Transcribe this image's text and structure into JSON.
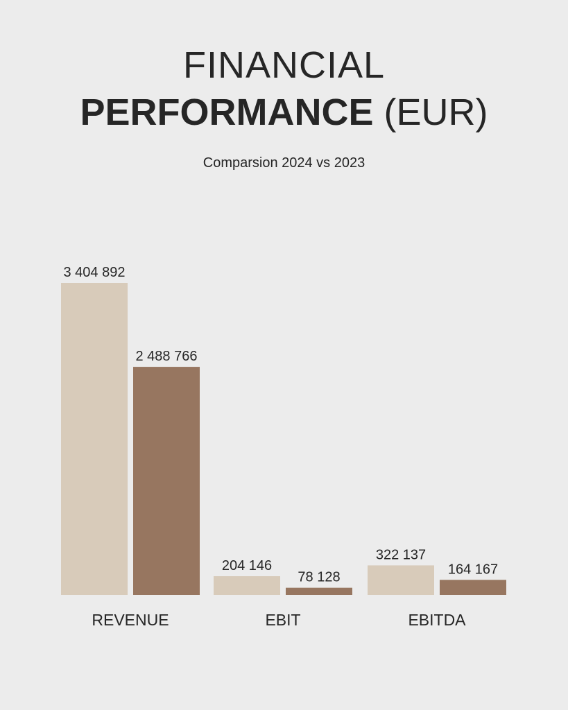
{
  "title": {
    "line1": "FINANCIAL",
    "line2_bold": "PERFORMANCE",
    "line2_rest": "(EUR)"
  },
  "subtitle": "Comparsion 2024 vs 2023",
  "colors": {
    "background": "#ececec",
    "series_2024": "#d8cbba",
    "series_2023": "#977660",
    "text": "#262626"
  },
  "chart_data": {
    "type": "bar",
    "title": "FINANCIAL PERFORMANCE (EUR)",
    "subtitle": "Comparsion 2024 vs 2023",
    "categories": [
      "REVENUE",
      "EBIT",
      "EBITDA"
    ],
    "series": [
      {
        "values": [
          3404892,
          204146,
          322137
        ],
        "labels": [
          "3 404 892",
          "204 146",
          "322 137"
        ],
        "color": "#d8cbba"
      },
      {
        "values": [
          2488766,
          78128,
          164167
        ],
        "labels": [
          "2 488 766",
          "78 128",
          "164 167"
        ],
        "color": "#977660"
      }
    ],
    "ylim": [
      0,
      3404892
    ],
    "grid": false,
    "legend": "none"
  }
}
